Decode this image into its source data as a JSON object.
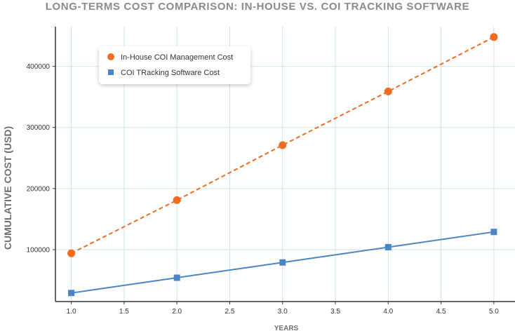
{
  "chart_data": {
    "type": "line",
    "title": "LONG-TERMS COST COMPARISON: IN-HOUSE VS. COI TRACKING SOFTWARE",
    "xlabel": "YEARS",
    "ylabel": "CUMULATIVE COST (USD)",
    "x": [
      1,
      2,
      3,
      4,
      5
    ],
    "xlim": [
      0.85,
      5.2
    ],
    "ylim": [
      15000,
      465000
    ],
    "xticks": [
      1.0,
      1.5,
      2.0,
      2.5,
      3.0,
      3.5,
      4.0,
      4.5,
      5.0
    ],
    "xtick_labels": [
      "1.0",
      "1.5",
      "2.0",
      "2.5",
      "3.0",
      "3.5",
      "4.0",
      "4.5",
      "5.0"
    ],
    "yticks": [
      100000,
      200000,
      300000,
      400000
    ],
    "ytick_labels": [
      "100000",
      "200000",
      "300000",
      "400000"
    ],
    "grid": true,
    "legend_position": "top-left",
    "series": [
      {
        "name": "In-House COI Management Cost",
        "values": [
          94000,
          181000,
          271000,
          359000,
          448000
        ],
        "color": "#f26b21",
        "marker": "circle",
        "line_style": "dashed"
      },
      {
        "name": "COI TRacking Software Cost",
        "values": [
          29000,
          54000,
          79000,
          104000,
          129000
        ],
        "color": "#4a86c5",
        "marker": "square",
        "line_style": "solid"
      }
    ]
  }
}
